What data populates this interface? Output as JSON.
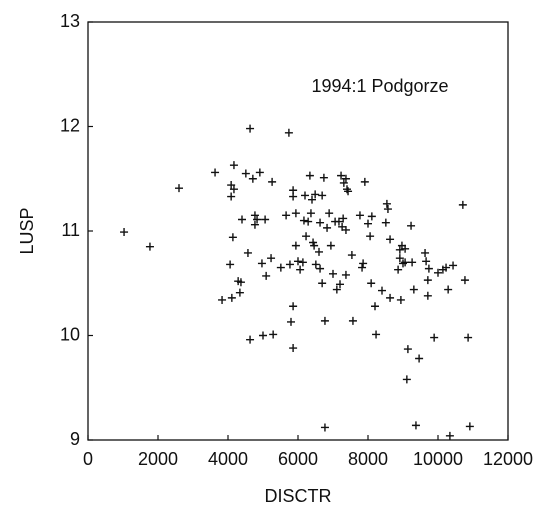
{
  "chart_data": {
    "type": "scatter",
    "x_label": "DISCTR",
    "y_label": "LUSP",
    "annotation": "1994:1 Podgorze",
    "xlim": [
      0,
      12000
    ],
    "xticks": [
      0,
      2000,
      4000,
      6000,
      8000,
      10000,
      12000
    ],
    "ylim": [
      9,
      13
    ],
    "yticks": [
      9,
      10,
      11,
      12,
      13
    ],
    "color": "#111111",
    "x": [
      1030,
      1770,
      2600,
      3630,
      3830,
      4090,
      4090,
      4170,
      4170,
      4140,
      4110,
      4060,
      4290,
      4370,
      4340,
      4400,
      4510,
      4570,
      4630,
      4630,
      4710,
      4770,
      4770,
      4830,
      4910,
      4970,
      5000,
      5060,
      5090,
      5260,
      5230,
      5290,
      5510,
      5660,
      5800,
      5740,
      5770,
      5860,
      5860,
      5860,
      5860,
      5940,
      5940,
      6000,
      6060,
      6140,
      6170,
      6200,
      6230,
      6290,
      6340,
      6370,
      6400,
      6430,
      6460,
      6490,
      6510,
      6600,
      6630,
      6630,
      6690,
      6690,
      6740,
      6770,
      6770,
      6830,
      6890,
      6940,
      7000,
      7060,
      7110,
      7170,
      7200,
      7230,
      7260,
      7290,
      7310,
      7370,
      7400,
      7370,
      7370,
      7430,
      7540,
      7570,
      7770,
      7830,
      7860,
      7910,
      8000,
      8060,
      8090,
      8110,
      8200,
      8230,
      8400,
      8510,
      8540,
      8570,
      8630,
      8630,
      8860,
      8910,
      8910,
      8940,
      8970,
      9000,
      9060,
      9060,
      9140,
      9260,
      9110,
      9230,
      9310,
      9370,
      9460,
      9630,
      9660,
      9710,
      9740,
      9710,
      9890,
      10000,
      10140,
      10230,
      10290,
      10340,
      10430,
      10710,
      10770,
      10860,
      10910
    ],
    "values": [
      10.99,
      10.85,
      11.41,
      11.56,
      10.34,
      11.44,
      11.33,
      11.63,
      11.4,
      10.94,
      10.36,
      10.68,
      10.52,
      10.51,
      10.41,
      11.11,
      11.55,
      10.79,
      11.98,
      9.96,
      11.5,
      11.15,
      11.06,
      11.11,
      11.56,
      10.69,
      10.0,
      11.11,
      10.57,
      11.47,
      10.74,
      10.01,
      10.65,
      11.15,
      10.13,
      11.94,
      10.68,
      11.39,
      11.33,
      10.28,
      9.88,
      11.17,
      10.86,
      10.71,
      10.63,
      10.7,
      11.1,
      11.34,
      10.95,
      11.09,
      11.53,
      11.17,
      11.3,
      10.89,
      10.86,
      11.35,
      10.68,
      10.8,
      10.64,
      11.08,
      11.34,
      10.5,
      11.51,
      10.14,
      9.12,
      11.03,
      11.17,
      10.86,
      10.59,
      11.09,
      10.44,
      11.09,
      10.49,
      11.53,
      11.04,
      11.12,
      11.46,
      11.5,
      11.4,
      10.58,
      11.01,
      11.38,
      10.77,
      10.14,
      11.15,
      10.65,
      10.69,
      11.47,
      11.07,
      10.95,
      10.5,
      11.14,
      10.28,
      10.01,
      10.43,
      11.08,
      11.26,
      11.21,
      10.36,
      10.92,
      10.63,
      10.82,
      10.74,
      10.34,
      10.86,
      10.69,
      10.83,
      10.7,
      9.87,
      10.7,
      9.58,
      11.05,
      10.44,
      9.14,
      9.78,
      10.79,
      10.71,
      10.53,
      10.64,
      10.38,
      9.98,
      10.6,
      10.63,
      10.65,
      10.44,
      9.04,
      10.67,
      11.25,
      10.53,
      9.98,
      9.13
    ]
  }
}
